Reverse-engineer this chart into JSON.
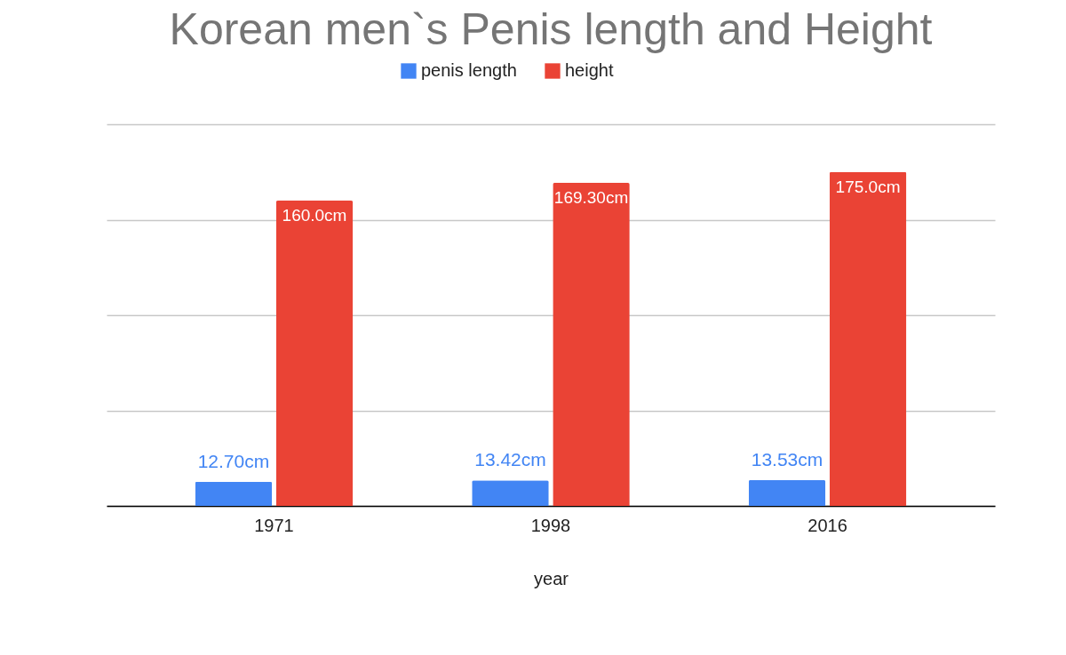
{
  "chart_data": {
    "type": "bar",
    "title": "Korean men`s Penis length and Height",
    "xlabel": "year",
    "categories": [
      "1971",
      "1998",
      "2016"
    ],
    "series": [
      {
        "name": "penis length",
        "color": "#4285f4",
        "values": [
          12.7,
          13.42,
          13.53
        ],
        "value_labels": [
          "12.70cm",
          "13.42cm",
          "13.53cm"
        ]
      },
      {
        "name": "height",
        "color": "#ea4335",
        "values": [
          160.0,
          169.3,
          175.0
        ],
        "value_labels": [
          "160.0cm",
          "169.30cm",
          "175.0cm"
        ]
      }
    ],
    "ylim": [
      0,
      200
    ],
    "yticks": [
      {
        "value": 0,
        "label": null
      },
      {
        "value": 50,
        "label": null
      },
      {
        "value": 100,
        "label": null
      },
      {
        "value": 150,
        "label": null
      },
      {
        "value": 200,
        "label": null
      }
    ],
    "tick_labels": "x",
    "grid": "y",
    "legend": "top"
  }
}
